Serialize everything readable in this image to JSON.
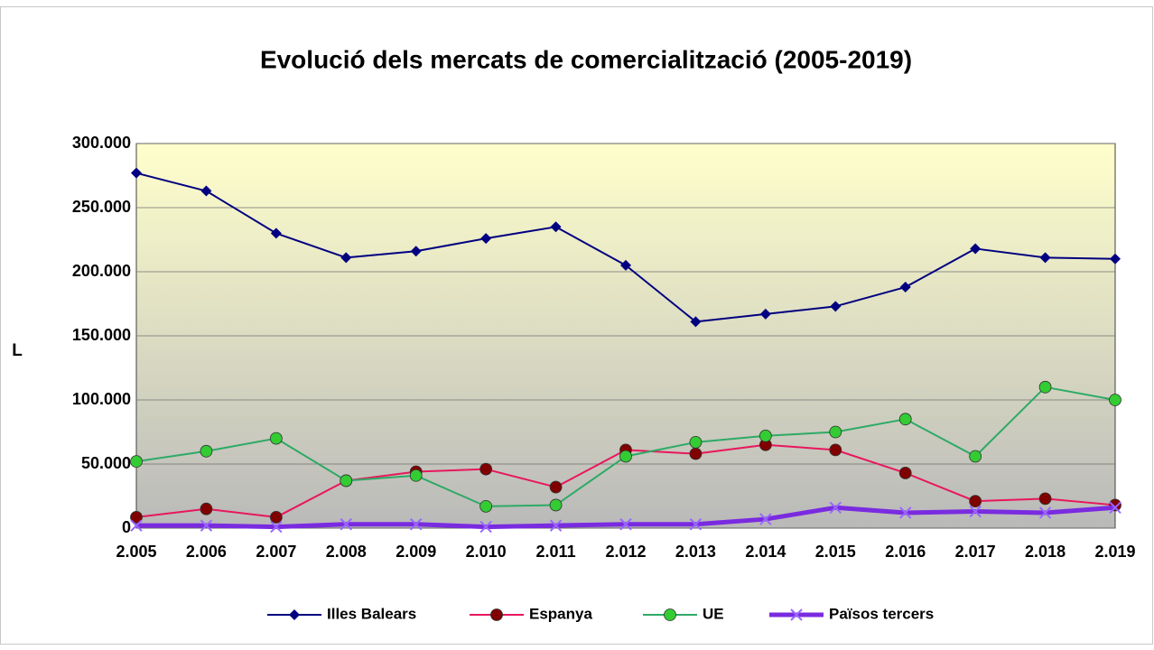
{
  "chart_data": {
    "type": "line",
    "title": "Evolució dels mercats de comercialització  (2005-2019)",
    "y_label": "L",
    "categories": [
      "2.005",
      "2.006",
      "2.007",
      "2.008",
      "2.009",
      "2.010",
      "2.011",
      "2.012",
      "2.013",
      "2.014",
      "2.015",
      "2.016",
      "2.017",
      "2.018",
      "2.019"
    ],
    "series": [
      {
        "name": "Illes Balears",
        "color": "#000080",
        "marker": "diamond",
        "marker_color": "#000080",
        "values": [
          277000,
          263000,
          230000,
          211000,
          216000,
          226000,
          235000,
          205000,
          161000,
          167000,
          173000,
          188000,
          218000,
          211000,
          210000
        ]
      },
      {
        "name": "Espanya",
        "color": "#e8175d",
        "marker": "circle",
        "marker_color": "#800000",
        "values": [
          8500,
          15000,
          8500,
          37000,
          44000,
          46000,
          32000,
          61000,
          58000,
          65000,
          61000,
          43000,
          21000,
          23000,
          18000
        ]
      },
      {
        "name": "UE",
        "color": "#2eaa66",
        "marker": "circle",
        "marker_color": "#33cc33",
        "values": [
          52000,
          60000,
          70000,
          37000,
          41000,
          17000,
          18000,
          56000,
          67000,
          72000,
          75000,
          85000,
          56000,
          110000,
          100000
        ]
      },
      {
        "name": "Països tercers",
        "color": "#7a2be0",
        "marker": "x",
        "marker_color": "#9966ff",
        "values": [
          2000,
          2000,
          1000,
          3000,
          3000,
          1000,
          2000,
          3000,
          3000,
          7000,
          16000,
          12000,
          13000,
          12000,
          16000
        ]
      }
    ],
    "ylim": [
      0,
      300000
    ],
    "yticks": [
      0,
      {
        "value": 50000,
        "label": "50.000"
      },
      {
        "value": 100000,
        "label": "100.000"
      },
      {
        "value": 150000,
        "label": "150.000"
      },
      {
        "value": 200000,
        "label": "200.000"
      },
      {
        "value": 250000,
        "label": "250.000"
      },
      {
        "value": 300000,
        "label": "300.000"
      }
    ],
    "grid": true,
    "legend": "bottom"
  }
}
